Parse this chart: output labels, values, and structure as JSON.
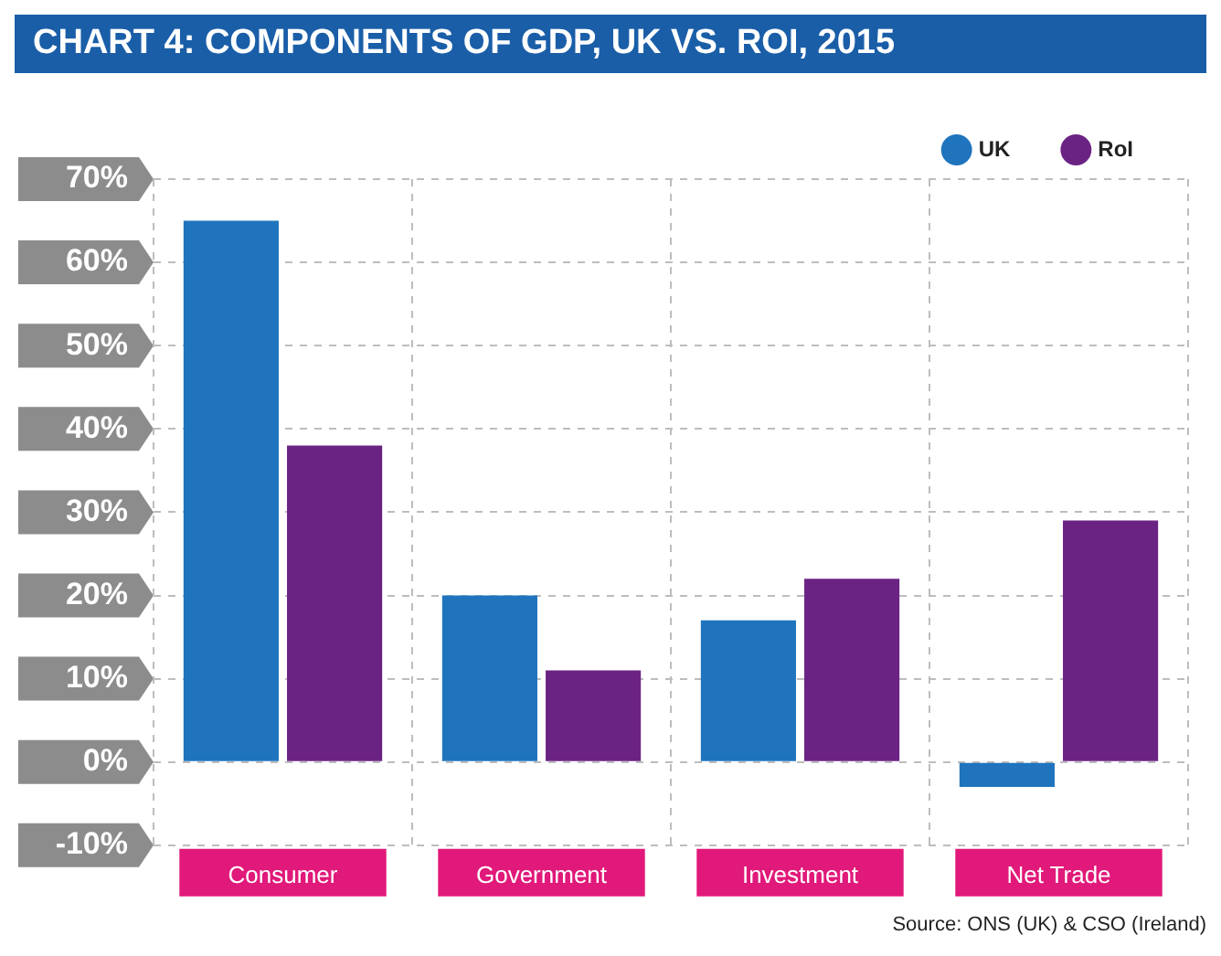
{
  "chart_data": {
    "type": "bar",
    "title": "CHART 4: COMPONENTS OF GDP, UK VS. ROI, 2015",
    "categories": [
      "Consumer",
      "Government",
      "Investment",
      "Net Trade"
    ],
    "series": [
      {
        "name": "UK",
        "color": "#1f74bd",
        "values": [
          65,
          20,
          17,
          -3
        ]
      },
      {
        "name": "RoI",
        "color": "#6a2383",
        "values": [
          38,
          11,
          22,
          29
        ]
      }
    ],
    "ylim": [
      -10,
      70
    ],
    "yticks": [
      {
        "value": -10,
        "label": "-10%"
      },
      {
        "value": 0,
        "label": "0%"
      },
      {
        "value": 10,
        "label": "10%"
      },
      {
        "value": 20,
        "label": "20%"
      },
      {
        "value": 30,
        "label": "30%"
      },
      {
        "value": 40,
        "label": "40%"
      },
      {
        "value": 50,
        "label": "50%"
      },
      {
        "value": 60,
        "label": "60%"
      },
      {
        "value": 70,
        "label": "70%"
      }
    ],
    "grid": true,
    "legend": "top right",
    "annotations": [
      "Source: ONS (UK) & CSO (Ireland)"
    ]
  }
}
